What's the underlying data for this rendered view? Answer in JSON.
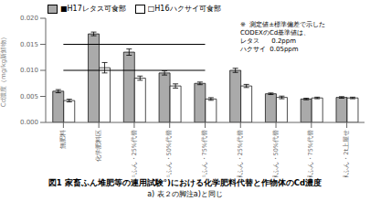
{
  "chart_data": {
    "type": "bar",
    "title": "図1 家畜ふん堆肥等の連用試験°)における化学肥料代替と作物体のCd濃度",
    "footnote": "a) 表２の脚注a)と同じ",
    "annotations": [
      "※  測定値±標準偏差で示した",
      "CODEXのCd基準値は、",
      "レタス      0.2ppm",
      "ハクサイ  0.05ppm"
    ],
    "y_label": "Cd濃度（mg/kg新鮮物）",
    "categories": [
      "無肥料",
      "化学肥料区",
      "牛ふん・25%代替",
      "牛ふん・50%代替",
      "牛ふん・75%代替",
      "豚ふん・25%代替",
      "豚ふん・50%代替",
      "豚ふん・75%代替",
      "豚ふん・2t上屋せ"
    ],
    "series": [
      {
        "name": "■H17レタス可食部",
        "color": "#aaaaaa",
        "values": [
          0.006,
          0.017,
          0.0135,
          0.0095,
          0.0075,
          0.01,
          0.0055,
          0.0045,
          0.0048
        ],
        "errors": [
          0.0003,
          0.00035,
          0.0006,
          0.0004,
          0.00025,
          0.0004,
          0.00015,
          0.00015,
          0.00015
        ]
      },
      {
        "name": "□H16ハクサイ可食部",
        "color": "#ffffff",
        "values": [
          0.0042,
          0.0105,
          0.0085,
          0.007,
          0.0045,
          0.007,
          0.0048,
          0.0047,
          0.0047
        ],
        "errors": [
          0.00025,
          0.001,
          0.0004,
          0.0004,
          0.00025,
          0.0003,
          0.00025,
          0.00015,
          0.00015
        ]
      }
    ],
    "reference_lines": [
      0.015,
      0.01
    ],
    "ylim": [
      0.0,
      0.02
    ],
    "yticks": [
      {
        "value": 0.0,
        "label": "0.000"
      },
      {
        "value": 0.005,
        "label": "0.005"
      },
      {
        "value": 0.01,
        "label": "0.010"
      },
      {
        "value": 0.015,
        "label": "0.015"
      },
      {
        "value": 0.02,
        "label": "0.020"
      }
    ],
    "legend": "top left",
    "grid": false
  }
}
